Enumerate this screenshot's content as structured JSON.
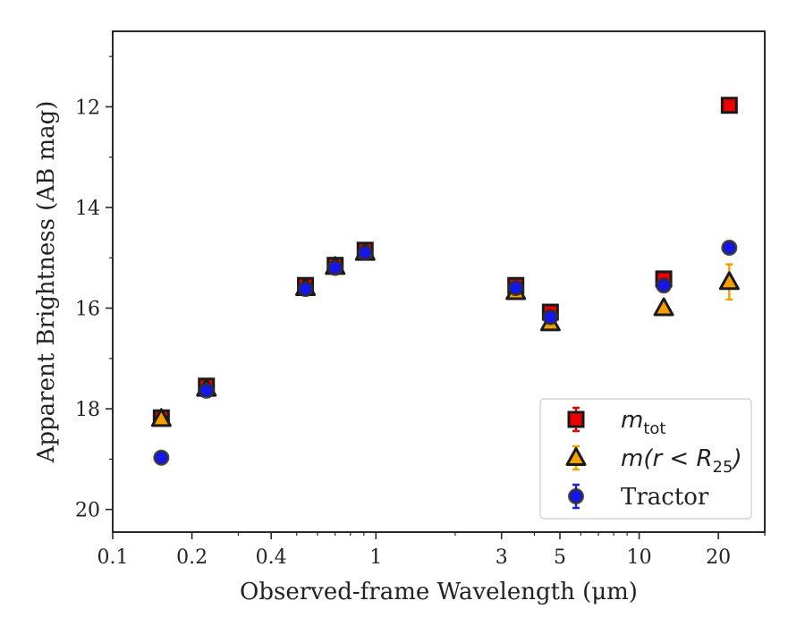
{
  "chart_data": {
    "type": "scatter",
    "title": "",
    "xlabel": "Observed-frame Wavelength (μm)",
    "ylabel": "Apparent Brightness (AB mag)",
    "xscale": "log",
    "yaxis_inverted": true,
    "xlim": [
      0.1,
      30
    ],
    "ylim": [
      20.45,
      10.5
    ],
    "xticks": [
      0.1,
      0.2,
      0.4,
      1,
      3,
      5,
      10,
      20
    ],
    "xtick_labels": [
      "0.1",
      "0.2",
      "0.4",
      "1",
      "3",
      "5",
      "10",
      "20"
    ],
    "yticks": [
      12,
      14,
      16,
      18,
      20
    ],
    "ytick_labels": [
      "12",
      "14",
      "16",
      "18",
      "20"
    ],
    "legend_placement": "lower-right",
    "series": [
      {
        "name": "m_tot",
        "legend_label": "m",
        "legend_sub": "tot",
        "marker": "square",
        "color": "#ee0000",
        "errcolor": "#dd0000",
        "points": [
          {
            "x": 0.153,
            "y": 18.18,
            "err": 0.1
          },
          {
            "x": 0.227,
            "y": 17.55,
            "err": 0.1
          },
          {
            "x": 0.54,
            "y": 15.55,
            "err": 0.05
          },
          {
            "x": 0.7,
            "y": 15.15,
            "err": 0.05
          },
          {
            "x": 0.91,
            "y": 14.85,
            "err": 0.05
          },
          {
            "x": 3.4,
            "y": 15.55,
            "err": 0.05
          },
          {
            "x": 4.6,
            "y": 16.08,
            "err": 0.1
          },
          {
            "x": 12.4,
            "y": 15.42,
            "err": 0.1
          },
          {
            "x": 22.0,
            "y": 11.97,
            "err": 0.05
          }
        ]
      },
      {
        "name": "m(r < R25)",
        "legend_label": "m(r < R",
        "legend_sub": "25",
        "legend_suffix": ")",
        "marker": "triangle",
        "color": "#f5a000",
        "errcolor": "#f5a000",
        "points": [
          {
            "x": 0.153,
            "y": 18.2,
            "err": 0.1
          },
          {
            "x": 0.227,
            "y": 17.6,
            "err": 0.1
          },
          {
            "x": 0.54,
            "y": 15.6,
            "err": 0.05
          },
          {
            "x": 0.7,
            "y": 15.18,
            "err": 0.05
          },
          {
            "x": 0.91,
            "y": 14.9,
            "err": 0.05
          },
          {
            "x": 3.4,
            "y": 15.68,
            "err": 0.05
          },
          {
            "x": 4.6,
            "y": 16.3,
            "err": 0.1
          },
          {
            "x": 12.4,
            "y": 16.0,
            "err": 0.1
          },
          {
            "x": 22.0,
            "y": 15.48,
            "err": 0.35
          }
        ]
      },
      {
        "name": "Tractor",
        "legend_label": "Tractor",
        "marker": "circle",
        "color": "#1515ee",
        "errcolor": "#2020ee",
        "points": [
          {
            "x": 0.153,
            "y": 18.97,
            "err": 0.05
          },
          {
            "x": 0.227,
            "y": 17.64,
            "err": 0.05
          },
          {
            "x": 0.54,
            "y": 15.62,
            "err": 0.05
          },
          {
            "x": 0.7,
            "y": 15.2,
            "err": 0.05
          },
          {
            "x": 0.91,
            "y": 14.9,
            "err": 0.05
          },
          {
            "x": 3.4,
            "y": 15.6,
            "err": 0.05
          },
          {
            "x": 4.6,
            "y": 16.18,
            "err": 0.05
          },
          {
            "x": 12.4,
            "y": 15.55,
            "err": 0.05
          },
          {
            "x": 22.0,
            "y": 14.8,
            "err": 0.08
          }
        ]
      }
    ]
  }
}
